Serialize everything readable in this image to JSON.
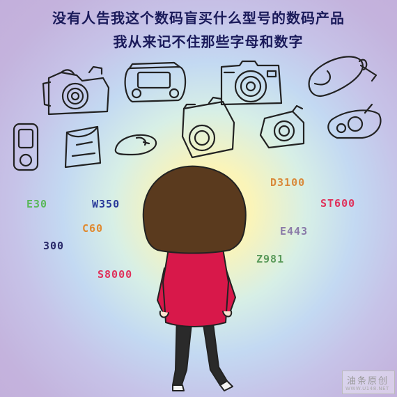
{
  "title": {
    "line1": "没有人告我这个数码盲买什么型号的数码产品",
    "line2": "我从来记不住那些字母和数字"
  },
  "codes": [
    {
      "text": "D3100",
      "color": "#d9893a"
    },
    {
      "text": "ST600",
      "color": "#e0305a"
    },
    {
      "text": "E30",
      "color": "#5ab85a"
    },
    {
      "text": "W350",
      "color": "#2a3a9a"
    },
    {
      "text": "C60",
      "color": "#e08a30"
    },
    {
      "text": "E443",
      "color": "#8a7aa8"
    },
    {
      "text": "300",
      "color": "#2a2a6a"
    },
    {
      "text": "Z981",
      "color": "#5a9a5a"
    },
    {
      "text": "S8000",
      "color": "#e0305a"
    }
  ],
  "watermark": {
    "main": "油条原创",
    "sub": "WWW.U148.NET"
  },
  "colors": {
    "hair": "#5a3a1e",
    "shirt": "#d8184a",
    "pants": "#2a2a2a",
    "ink": "#222222"
  },
  "icons": [
    "camera-icon",
    "game-console-icon",
    "mouse-icon",
    "mp3-player-icon",
    "bag-icon",
    "girl-figure"
  ]
}
